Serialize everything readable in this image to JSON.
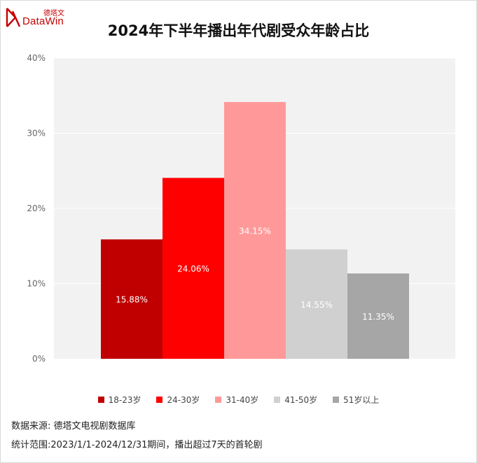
{
  "logo": {
    "cn": "德塔文",
    "en": "DataWin"
  },
  "chart_data": {
    "type": "bar",
    "title": "2024年下半年播出年代剧受众年龄占比",
    "categories": [
      "18-23岁",
      "24-30岁",
      "31-40岁",
      "41-50岁",
      "51岁以上"
    ],
    "values": [
      15.88,
      24.06,
      34.15,
      14.55,
      11.35
    ],
    "data_labels": [
      "15.88%",
      "24.06%",
      "34.15%",
      "14.55%",
      "11.35%"
    ],
    "colors": [
      "#c00000",
      "#ff0000",
      "#ff9999",
      "#d0d0d0",
      "#a6a6a6"
    ],
    "ylim": [
      0,
      40
    ],
    "yticks": [
      0,
      10,
      20,
      30,
      40
    ],
    "ytick_labels": [
      "0%",
      "10%",
      "20%",
      "30%",
      "40%"
    ],
    "grid": true,
    "plot_background": "#f2f2f2",
    "legend_position": "bottom"
  },
  "notes": {
    "source": "数据来源: 德塔文电视剧数据库",
    "scope": "统计范围:2023/1/1-2024/12/31期间，播出超过7天的首轮剧"
  }
}
